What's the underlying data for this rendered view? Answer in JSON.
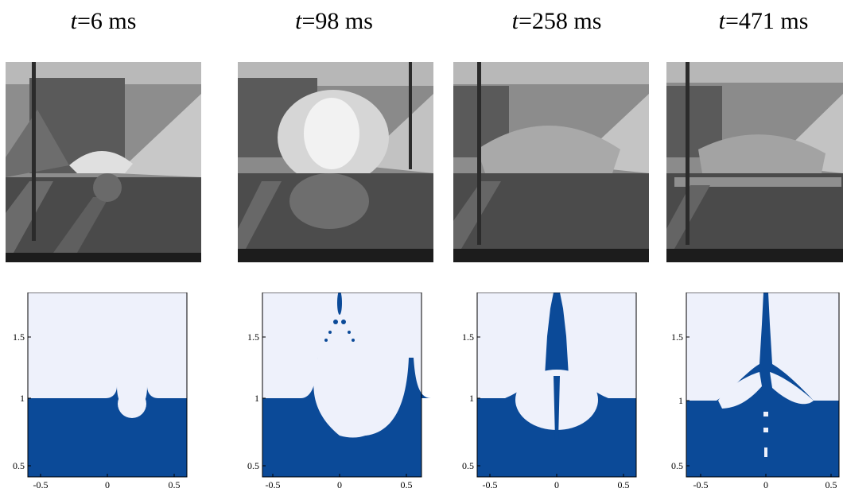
{
  "frames": [
    {
      "t_label": "t",
      "time": "=6 ms"
    },
    {
      "t_label": "t",
      "time": "=98 ms"
    },
    {
      "t_label": "t",
      "time": "=258 ms"
    },
    {
      "t_label": "t",
      "time": "=471 ms"
    }
  ],
  "axes": {
    "xticks": [
      "-0.5",
      "0",
      "0.5"
    ],
    "yticks": [
      "1.5",
      "1",
      "0.5"
    ]
  },
  "colors": {
    "liquid": "#0b4a98",
    "air": "#eef1fb",
    "photo_dark": "#3a3a3a",
    "photo_light": "#b5b5b5"
  }
}
